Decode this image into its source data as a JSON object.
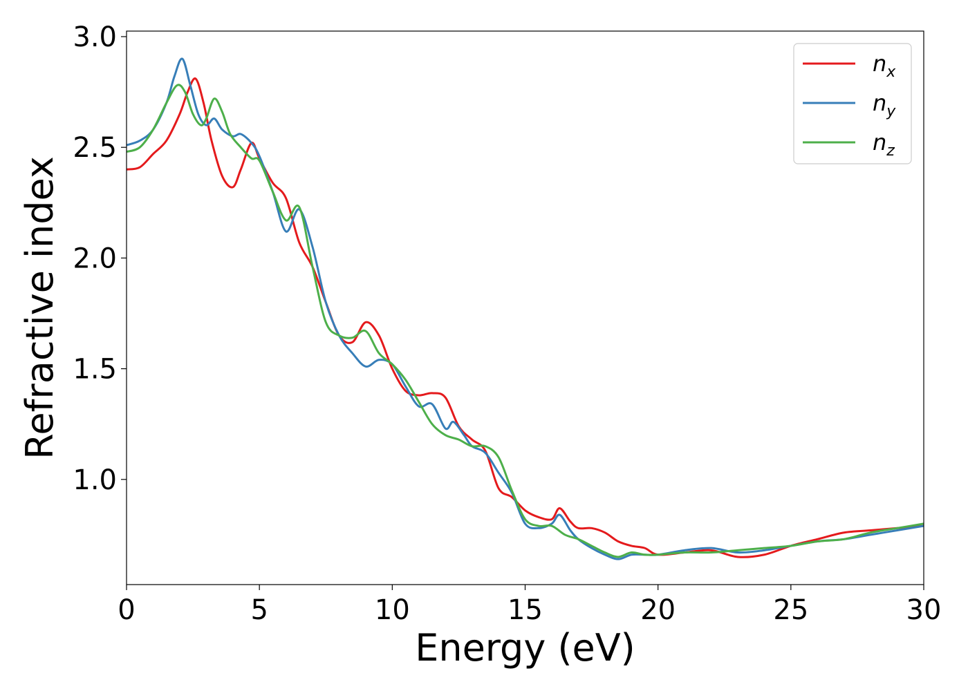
{
  "chart_data": {
    "type": "line",
    "xlabel": "Energy (eV)",
    "ylabel": "Refractive index",
    "xlim": [
      0,
      30
    ],
    "ylim": [
      0.525,
      3.025
    ],
    "xticks": [
      "0",
      "5",
      "10",
      "15",
      "20",
      "25",
      "30"
    ],
    "yticks": [
      "1.0",
      "1.5",
      "2.0",
      "2.5",
      "3.0"
    ],
    "grid": false,
    "legend_position": "top-right",
    "series": [
      {
        "name": "n",
        "subscript": "x",
        "color": "#e41a1c",
        "x": [
          0,
          0.5,
          1.0,
          1.5,
          2.0,
          2.3,
          2.6,
          2.9,
          3.2,
          3.6,
          4.0,
          4.3,
          4.7,
          5.0,
          5.5,
          6.0,
          6.5,
          7.0,
          7.5,
          8.0,
          8.5,
          9.0,
          9.5,
          10.0,
          10.5,
          11.0,
          11.5,
          12.0,
          12.5,
          13.0,
          13.5,
          14.0,
          14.5,
          15.0,
          15.5,
          16.0,
          16.3,
          16.7,
          17.0,
          17.5,
          18.0,
          18.5,
          19.0,
          19.5,
          20.0,
          21.0,
          22.0,
          23.0,
          24.0,
          25.0,
          26.0,
          27.0,
          28.0,
          29.0,
          30.0
        ],
        "y": [
          2.4,
          2.41,
          2.47,
          2.53,
          2.65,
          2.75,
          2.81,
          2.7,
          2.53,
          2.37,
          2.32,
          2.4,
          2.52,
          2.45,
          2.34,
          2.27,
          2.07,
          1.96,
          1.8,
          1.65,
          1.62,
          1.71,
          1.65,
          1.5,
          1.4,
          1.38,
          1.39,
          1.37,
          1.24,
          1.18,
          1.13,
          0.96,
          0.92,
          0.86,
          0.83,
          0.82,
          0.87,
          0.81,
          0.78,
          0.78,
          0.76,
          0.72,
          0.7,
          0.69,
          0.66,
          0.67,
          0.68,
          0.65,
          0.66,
          0.7,
          0.73,
          0.76,
          0.77,
          0.78,
          0.79
        ]
      },
      {
        "name": "n",
        "subscript": "y",
        "color": "#377eb8",
        "x": [
          0,
          0.5,
          1.0,
          1.5,
          1.8,
          2.1,
          2.4,
          2.7,
          3.0,
          3.3,
          3.6,
          4.0,
          4.3,
          4.7,
          5.0,
          5.5,
          6.0,
          6.5,
          7.0,
          7.5,
          8.0,
          8.5,
          9.0,
          9.5,
          10.0,
          10.5,
          11.0,
          11.5,
          12.0,
          12.3,
          12.7,
          13.0,
          13.5,
          14.0,
          14.5,
          15.0,
          15.5,
          16.0,
          16.3,
          16.7,
          17.0,
          17.5,
          18.0,
          18.5,
          19.0,
          19.5,
          20.0,
          21.0,
          22.0,
          23.0,
          24.0,
          25.0,
          26.0,
          27.0,
          28.0,
          29.0,
          30.0
        ],
        "y": [
          2.51,
          2.53,
          2.58,
          2.7,
          2.82,
          2.9,
          2.78,
          2.65,
          2.6,
          2.63,
          2.58,
          2.55,
          2.56,
          2.52,
          2.46,
          2.3,
          2.12,
          2.22,
          2.05,
          1.8,
          1.65,
          1.57,
          1.51,
          1.54,
          1.52,
          1.42,
          1.33,
          1.34,
          1.23,
          1.26,
          1.2,
          1.15,
          1.12,
          1.03,
          0.94,
          0.8,
          0.78,
          0.8,
          0.84,
          0.77,
          0.73,
          0.69,
          0.66,
          0.64,
          0.66,
          0.66,
          0.66,
          0.68,
          0.69,
          0.67,
          0.68,
          0.7,
          0.72,
          0.73,
          0.75,
          0.77,
          0.79
        ]
      },
      {
        "name": "n",
        "subscript": "z",
        "color": "#4daf4a",
        "x": [
          0,
          0.5,
          1.0,
          1.5,
          1.9,
          2.2,
          2.5,
          2.8,
          3.0,
          3.3,
          3.6,
          3.9,
          4.3,
          4.7,
          5.0,
          5.5,
          6.0,
          6.5,
          7.0,
          7.5,
          8.0,
          8.5,
          9.0,
          9.5,
          10.0,
          10.5,
          11.0,
          11.5,
          12.0,
          12.5,
          13.0,
          13.5,
          14.0,
          14.5,
          15.0,
          15.5,
          16.0,
          16.5,
          17.0,
          17.5,
          18.0,
          18.5,
          19.0,
          19.5,
          20.0,
          21.0,
          22.0,
          23.0,
          24.0,
          25.0,
          26.0,
          27.0,
          28.0,
          29.0,
          30.0
        ],
        "y": [
          2.48,
          2.5,
          2.58,
          2.7,
          2.78,
          2.75,
          2.65,
          2.6,
          2.63,
          2.72,
          2.66,
          2.56,
          2.5,
          2.45,
          2.44,
          2.3,
          2.17,
          2.23,
          1.96,
          1.71,
          1.65,
          1.64,
          1.67,
          1.57,
          1.52,
          1.45,
          1.35,
          1.25,
          1.2,
          1.18,
          1.15,
          1.15,
          1.1,
          0.95,
          0.82,
          0.79,
          0.79,
          0.75,
          0.73,
          0.7,
          0.67,
          0.65,
          0.67,
          0.66,
          0.66,
          0.67,
          0.67,
          0.68,
          0.69,
          0.7,
          0.72,
          0.73,
          0.76,
          0.78,
          0.8
        ]
      }
    ]
  }
}
